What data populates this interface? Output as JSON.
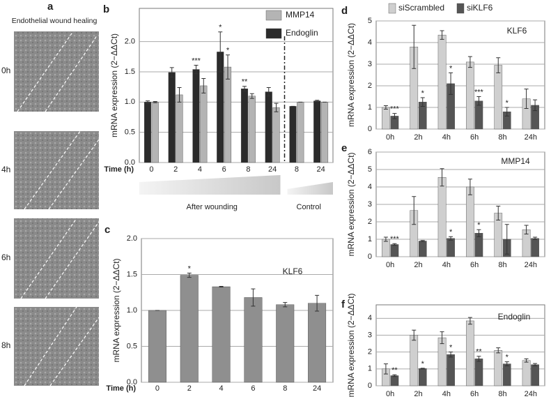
{
  "panel_a": {
    "label": "a",
    "title": "Endothelial wound healing",
    "timepoints": [
      "0h",
      "4h",
      "6h",
      "8h"
    ]
  },
  "chart_data": [
    {
      "type": "bar",
      "panel": "b",
      "ylabel": "mRNA expression (2−ΔΔCt)",
      "xlabel": "Time (h)",
      "categories": [
        "0",
        "2",
        "4",
        "6",
        "8",
        "24",
        "8",
        "24"
      ],
      "group_labels": [
        "After wounding",
        "Control"
      ],
      "series": [
        {
          "name": "Endoglin",
          "color": "#2b2b2b",
          "values": [
            1.0,
            1.49,
            1.54,
            1.83,
            1.22,
            1.17,
            0.93,
            1.02
          ],
          "errors": [
            0.02,
            0.08,
            0.07,
            0.33,
            0.04,
            0.07,
            0,
            0.01
          ],
          "significance": [
            null,
            null,
            "***",
            "*",
            "**",
            null,
            null,
            null
          ]
        },
        {
          "name": "MMP14",
          "color": "#b4b4b4",
          "values": [
            1.0,
            1.12,
            1.27,
            1.58,
            1.1,
            0.91,
            1.0,
            1.0
          ],
          "errors": [
            0.01,
            0.12,
            0.12,
            0.2,
            0.04,
            0.07,
            0,
            0
          ],
          "significance": [
            null,
            null,
            null,
            "*",
            null,
            null,
            null,
            null
          ]
        }
      ],
      "ylim": [
        0,
        2.55
      ],
      "yticks": [
        {
          "value": 0,
          "label": "0.0"
        },
        0.5,
        {
          "value": 1,
          "label": "1.0"
        },
        1.5,
        {
          "value": 2,
          "label": "2.0"
        }
      ],
      "grid": true
    },
    {
      "type": "bar",
      "panel": "c",
      "ylabel": "mRNA expression (2−ΔΔCt)",
      "xlabel": "Time (h)",
      "annotation": "KLF6",
      "categories": [
        "0",
        "2",
        "4",
        "6",
        "8",
        "24"
      ],
      "series": [
        {
          "color": "#8f8f8f",
          "values": [
            1.0,
            1.49,
            1.33,
            1.18,
            1.08,
            1.1
          ],
          "errors": [
            0,
            0.03,
            0.005,
            0.12,
            0.03,
            0.11
          ],
          "significance": [
            null,
            "*",
            null,
            null,
            null,
            null
          ]
        }
      ],
      "ylim": [
        0,
        2
      ],
      "yticks": [
        {
          "value": 0,
          "label": "0.0"
        },
        0.5,
        {
          "value": 1,
          "label": "1.0"
        },
        1.5,
        {
          "value": 2,
          "label": "2.0"
        }
      ],
      "grid": true
    },
    {
      "type": "bar",
      "panel": "d",
      "ylabel": "mRNA expression (2−ΔΔCt)",
      "annotation": "KLF6",
      "categories": [
        "0h",
        "2h",
        "4h",
        "6h",
        "8h",
        "24h"
      ],
      "series": [
        {
          "name": "siScrambled",
          "color": "#cfcfcf",
          "values": [
            1.0,
            3.8,
            4.35,
            3.1,
            2.95,
            1.4
          ],
          "errors": [
            0.08,
            1.0,
            0.2,
            0.25,
            0.35,
            0.45
          ],
          "significance": [
            null,
            null,
            null,
            null,
            null,
            null
          ]
        },
        {
          "name": "siKLF6",
          "color": "#555555",
          "values": [
            0.6,
            1.25,
            2.1,
            1.3,
            0.8,
            1.1
          ],
          "errors": [
            0.12,
            0.2,
            0.5,
            0.2,
            0.2,
            0.25
          ],
          "significance": [
            "***",
            "*",
            "*",
            "***",
            "*",
            null
          ]
        }
      ],
      "ylim": [
        0,
        5
      ],
      "yticks": [
        0,
        1,
        2,
        3,
        4,
        5
      ],
      "grid": true
    },
    {
      "type": "bar",
      "panel": "e",
      "ylabel": "mRNA expression (2−ΔΔCt)",
      "annotation": "MMP14",
      "categories": [
        "0h",
        "2h",
        "4h",
        "6h",
        "8h",
        "24h"
      ],
      "series": [
        {
          "color": "#cfcfcf",
          "values": [
            1.0,
            2.65,
            4.55,
            4.0,
            2.5,
            1.55
          ],
          "errors": [
            0.12,
            0.8,
            0.5,
            0.45,
            0.4,
            0.25
          ],
          "significance": [
            null,
            null,
            null,
            null,
            null,
            null
          ]
        },
        {
          "color": "#555555",
          "values": [
            0.7,
            0.9,
            1.05,
            1.35,
            1.0,
            1.05
          ],
          "errors": [
            0.05,
            0.03,
            0.1,
            0.2,
            0.85,
            0.07
          ],
          "significance": [
            "***",
            null,
            "*",
            "*",
            null,
            null
          ]
        }
      ],
      "ylim": [
        0,
        6
      ],
      "yticks": [
        0,
        1,
        2,
        3,
        4,
        5,
        6
      ],
      "grid": true
    },
    {
      "type": "bar",
      "panel": "f",
      "ylabel": "mRNA expression (2−ΔΔCt)",
      "annotation": "Endoglin",
      "categories": [
        "0h",
        "2h",
        "4h",
        "6h",
        "8h",
        "24h"
      ],
      "series": [
        {
          "color": "#cfcfcf",
          "values": [
            1.0,
            3.0,
            2.85,
            3.85,
            2.1,
            1.5
          ],
          "errors": [
            0.3,
            0.3,
            0.35,
            0.2,
            0.15,
            0.1
          ],
          "significance": [
            null,
            null,
            null,
            null,
            null,
            null
          ]
        },
        {
          "color": "#555555",
          "values": [
            0.6,
            1.02,
            1.85,
            1.6,
            1.3,
            1.25
          ],
          "errors": [
            0.05,
            0.02,
            0.15,
            0.15,
            0.12,
            0.07
          ],
          "significance": [
            "**",
            "*",
            "*",
            "**",
            "*",
            null
          ]
        }
      ],
      "ylim": [
        0,
        4.8
      ],
      "yticks": [
        0,
        1,
        2,
        3,
        4
      ],
      "grid": true
    }
  ]
}
